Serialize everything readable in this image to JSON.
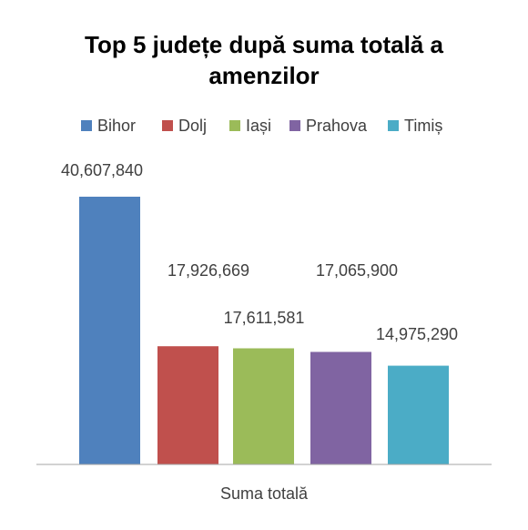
{
  "chart_data": {
    "type": "bar",
    "title_lines": [
      "Top 5 județe după suma totală a",
      "amenzilor"
    ],
    "categories": [
      "Suma totală"
    ],
    "series": [
      {
        "name": "Bihor",
        "value": 40607840,
        "label": "40,607,840",
        "color": "#4F81BD"
      },
      {
        "name": "Dolj",
        "value": 17926669,
        "label": "17,926,669",
        "color": "#C0504D"
      },
      {
        "name": "Iași",
        "value": 17611581,
        "label": "17,611,581",
        "color": "#9BBB59"
      },
      {
        "name": "Prahova",
        "value": 17065900,
        "label": "17,065,900",
        "color": "#8064A2"
      },
      {
        "name": "Timiș",
        "value": 14975290,
        "label": "14,975,290",
        "color": "#4BACC6"
      }
    ],
    "xlabel": "Suma totală",
    "ylabel": "",
    "ylim": [
      0,
      50000000
    ],
    "legend_position": "top",
    "grid": false
  }
}
